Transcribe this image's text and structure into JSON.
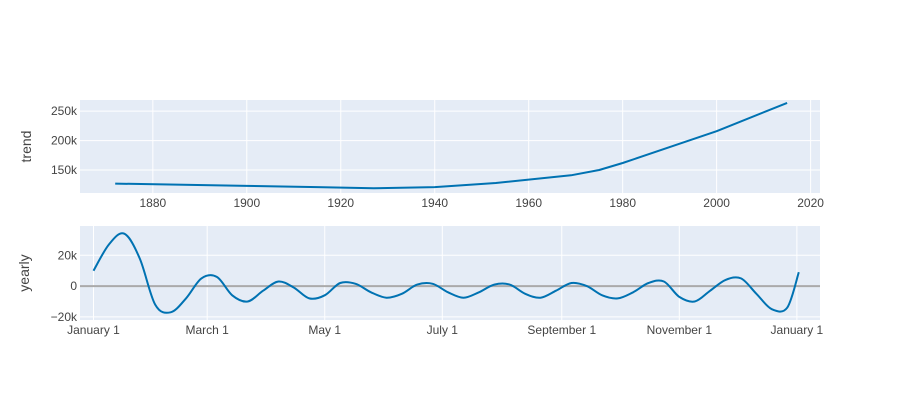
{
  "colors": {
    "plot_background": "#e5ecf6",
    "grid": "#ffffff",
    "series_line": "#0072b2",
    "zero_line": "#aaaaaa",
    "text": "#444444"
  },
  "chart_data": [
    {
      "type": "line",
      "ylabel": "trend",
      "xlabel": "",
      "grid": true,
      "xlim": [
        1864.5,
        2022
      ],
      "ylim": [
        111000,
        269000
      ],
      "x_ticks": [
        1880,
        1900,
        1920,
        1940,
        1960,
        1980,
        2000,
        2020
      ],
      "x_tick_labels": [
        "1880",
        "1900",
        "1920",
        "1940",
        "1960",
        "1980",
        "2000",
        "2020"
      ],
      "y_ticks": [
        150000,
        200000,
        250000
      ],
      "y_tick_labels": [
        "150k",
        "200k",
        "250k"
      ],
      "series": [
        {
          "x": [
            1872,
            1900,
            1915,
            1927,
            1940,
            1953,
            1969,
            1975,
            1980,
            1990,
            2000,
            2015
          ],
          "y": [
            127000,
            123000,
            121000,
            119000,
            121000,
            128000,
            141000,
            150000,
            162000,
            189000,
            216000,
            264000
          ]
        }
      ]
    },
    {
      "type": "line",
      "ylabel": "yearly",
      "xlabel": "",
      "grid": true,
      "zero_line": true,
      "xlim": [
        -7,
        377
      ],
      "ylim": [
        -22000,
        39000
      ],
      "x_ticks": [
        0,
        59,
        120,
        181,
        243,
        304,
        365
      ],
      "x_tick_labels": [
        "January  1",
        "March  1",
        "May  1",
        "July  1",
        "September  1",
        "November  1",
        "January  1"
      ],
      "y_ticks": [
        -20000,
        0,
        20000
      ],
      "y_tick_labels": [
        "−20k",
        "0",
        "20k"
      ],
      "series": [
        {
          "x": [
            0,
            8,
            16,
            24,
            32,
            40,
            48,
            56,
            64,
            72,
            80,
            88,
            96,
            104,
            112,
            120,
            128,
            136,
            144,
            152,
            160,
            168,
            176,
            184,
            192,
            200,
            208,
            216,
            224,
            232,
            240,
            248,
            256,
            264,
            272,
            280,
            288,
            296,
            304,
            312,
            320,
            328,
            336,
            344,
            352,
            360,
            366
          ],
          "y": [
            10000,
            27000,
            34000,
            18000,
            -12000,
            -17000,
            -8000,
            5000,
            6000,
            -6000,
            -10000,
            -3000,
            3000,
            -1000,
            -8000,
            -6000,
            2000,
            1500,
            -4000,
            -7500,
            -5000,
            1000,
            1500,
            -4000,
            -7500,
            -4000,
            1000,
            1000,
            -5000,
            -7500,
            -3000,
            2000,
            0,
            -6000,
            -8000,
            -4000,
            2000,
            3000,
            -7000,
            -10000,
            -3000,
            4000,
            5000,
            -5000,
            -15000,
            -14000,
            9000
          ]
        }
      ]
    }
  ]
}
